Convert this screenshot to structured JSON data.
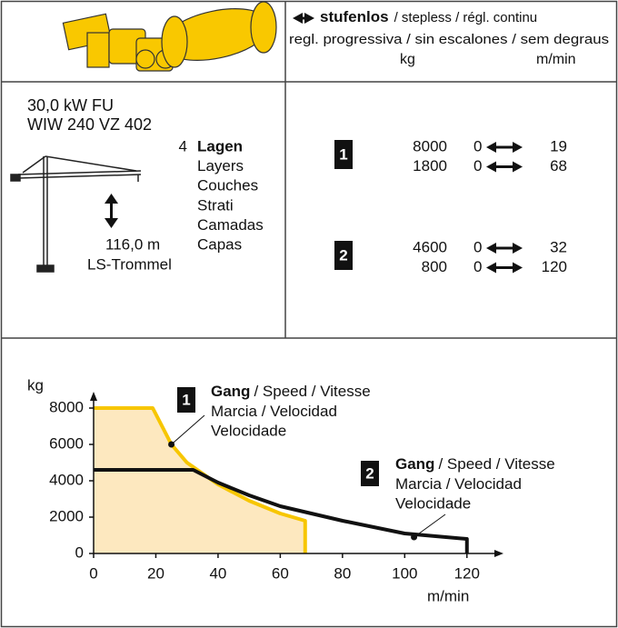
{
  "header": {
    "stepless": "stufenlos",
    "stepless_translations": "/ stepless / régl. continu",
    "stepless_translations_2": "regl. progressiva / sin escalones / sem degraus",
    "unit_load": "kg",
    "unit_speed": "m/min"
  },
  "spec": {
    "power": "30,0 kW FU",
    "model": "WIW 240 VZ 402",
    "layers_count": 4,
    "layers": [
      "Lagen",
      "Layers",
      "Couches",
      "Strati",
      "Camadas",
      "Capas"
    ],
    "height": "116,0 m",
    "drum": "LS-Trommel"
  },
  "gears": [
    {
      "label": "1",
      "rows": [
        {
          "load": 8000,
          "min": 0,
          "max": 19
        },
        {
          "load": 1800,
          "min": 0,
          "max": 68
        }
      ]
    },
    {
      "label": "2",
      "rows": [
        {
          "load": 4600,
          "min": 0,
          "max": 32
        },
        {
          "load": 800,
          "min": 0,
          "max": 120
        }
      ]
    }
  ],
  "chart_data": {
    "type": "line",
    "y_label": "kg",
    "x_label": "m/min",
    "xlim": [
      0,
      130
    ],
    "xticks": [
      0,
      20,
      40,
      60,
      80,
      100,
      120
    ],
    "ylim": [
      0,
      8600
    ],
    "yticks": [
      0,
      2000,
      4000,
      6000,
      8000
    ],
    "series": [
      {
        "name": "1",
        "color": "#f7c600",
        "fill": "#fde8bf",
        "x": [
          0,
          19,
          25,
          30,
          40,
          50,
          60,
          68,
          68
        ],
        "values": [
          8000,
          8000,
          6000,
          5000,
          3800,
          2900,
          2200,
          1800,
          0
        ]
      },
      {
        "name": "2",
        "color": "#111111",
        "x": [
          0,
          32,
          40,
          50,
          60,
          80,
          100,
          120,
          120
        ],
        "values": [
          4600,
          4600,
          3900,
          3200,
          2600,
          1800,
          1100,
          800,
          0
        ]
      }
    ],
    "annotations": [
      {
        "gear": "1",
        "bold": "Gang",
        "lines": [
          "/ Speed / Vitesse",
          "Marcia / Velocidad",
          "Velocidade"
        ],
        "x": 25,
        "y": 6000
      },
      {
        "gear": "2",
        "bold": "Gang",
        "lines": [
          "/ Speed / Vitesse",
          "Marcia / Velocidad",
          "Velocidade"
        ],
        "x": 103,
        "y": 900
      }
    ]
  }
}
